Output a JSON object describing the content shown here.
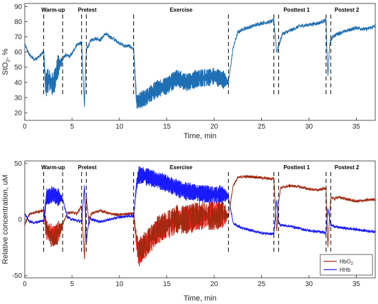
{
  "colors": {
    "sto2_line": "#1f6fb4",
    "hbo2_line": "#a02a10",
    "hbo2_fill": "#ff1a1a",
    "hhb_line": "#1a1aff",
    "phase_marker": "#000000",
    "axis": "#262626"
  },
  "chart_data": [
    {
      "type": "line",
      "title": "",
      "xlabel": "Time, min",
      "ylabel_main": "StO",
      "ylabel_sub": "2",
      "ylabel_tail": ", %",
      "xlim": [
        0,
        37
      ],
      "ylim": [
        15,
        92
      ],
      "xticks": [
        0,
        5,
        10,
        15,
        20,
        25,
        30,
        35
      ],
      "yticks": [
        20,
        30,
        40,
        50,
        60,
        70,
        80,
        90
      ],
      "grid": false,
      "phases": [
        {
          "label": "Warm-up",
          "x": 3.0
        },
        {
          "label": "Pretest",
          "x": 6.6
        },
        {
          "label": "Exercise",
          "x": 16.5
        },
        {
          "label": "Posttest 1",
          "x": 28.7
        },
        {
          "label": "Postest 2",
          "x": 34.0
        }
      ],
      "markers": [
        2.0,
        4.0,
        6.0,
        6.5,
        11.5,
        21.5,
        26.3,
        26.8,
        31.8,
        32.3
      ],
      "series": [
        {
          "name": "StO2",
          "x": [
            0,
            0.5,
            1.0,
            1.5,
            2.0,
            2.2,
            2.5,
            3.0,
            3.5,
            4.0,
            4.3,
            4.7,
            5.0,
            5.5,
            6.0,
            6.3,
            6.5,
            6.8,
            7.0,
            7.5,
            8.0,
            8.5,
            9.0,
            9.5,
            10.0,
            10.5,
            11.0,
            11.5,
            11.8,
            12.2,
            13.0,
            14.0,
            15.0,
            16.0,
            17.0,
            18.0,
            19.0,
            20.0,
            21.0,
            21.5,
            22.0,
            22.5,
            23.0,
            24.0,
            25.0,
            26.0,
            26.3,
            26.6,
            26.8,
            27.2,
            28.0,
            29.0,
            30.0,
            31.0,
            31.8,
            32.0,
            32.2,
            32.5,
            33.0,
            34.0,
            35.0,
            36.0,
            37.0
          ],
          "values": [
            65,
            58,
            55,
            57,
            60,
            38,
            42,
            38,
            50,
            55,
            58,
            57,
            59,
            65,
            66,
            25,
            62,
            65,
            68,
            69,
            68,
            72,
            70,
            68,
            66,
            64,
            64,
            62,
            27,
            28,
            31,
            36,
            38,
            43,
            40,
            42,
            43,
            44,
            42,
            40,
            63,
            73,
            75,
            77,
            79,
            80,
            81,
            60,
            64,
            72,
            74,
            77,
            78,
            79,
            81,
            44,
            66,
            70,
            72,
            74,
            76,
            75,
            77
          ],
          "noise": [
            0,
            0,
            0,
            0,
            0,
            7,
            7,
            7,
            7,
            0,
            0,
            0,
            0,
            0,
            0,
            0,
            0,
            0,
            0,
            0,
            0,
            0,
            0,
            0,
            0,
            0,
            0,
            0,
            3,
            5,
            5,
            5,
            5,
            5,
            5,
            5,
            5,
            5,
            5,
            0,
            0,
            0,
            0,
            0,
            0,
            0,
            0,
            0,
            0,
            0,
            0,
            0,
            0,
            0,
            0,
            0,
            0,
            0,
            0,
            0,
            0,
            0,
            0
          ]
        }
      ]
    },
    {
      "type": "line",
      "title": "",
      "xlabel": "Time, min",
      "ylabel": "Relative concentration, uM",
      "xlim": [
        0,
        37
      ],
      "ylim": [
        -52,
        52
      ],
      "xticks": [
        0,
        5,
        10,
        15,
        20,
        25,
        30,
        35
      ],
      "yticks": [
        -50,
        0,
        50
      ],
      "grid": false,
      "legend_position": "bottom-right",
      "phases": [
        {
          "label": "Warm-up",
          "x": 3.0
        },
        {
          "label": "Pretest",
          "x": 6.6
        },
        {
          "label": "Exercise",
          "x": 16.5
        },
        {
          "label": "Posttest 1",
          "x": 28.7
        },
        {
          "label": "Postest 2",
          "x": 34.0
        }
      ],
      "markers": [
        2.0,
        4.0,
        6.0,
        6.5,
        11.5,
        21.5,
        26.3,
        26.8,
        31.8,
        32.3
      ],
      "series": [
        {
          "name": "HbO",
          "name_sub": "2",
          "x": [
            0,
            0.5,
            1.0,
            1.5,
            2.0,
            2.3,
            3.0,
            3.5,
            4.0,
            4.5,
            5.0,
            5.5,
            6.0,
            6.3,
            6.5,
            6.8,
            7.0,
            8.0,
            9.0,
            10.0,
            11.0,
            11.5,
            11.8,
            12.0,
            13.0,
            14.0,
            15.0,
            16.0,
            17.0,
            18.0,
            19.0,
            20.0,
            21.0,
            21.5,
            22.0,
            22.5,
            23.0,
            24.0,
            25.0,
            26.0,
            26.3,
            26.6,
            26.8,
            27.0,
            28.0,
            29.0,
            30.0,
            31.0,
            31.8,
            32.0,
            32.3,
            32.7,
            33.0,
            34.0,
            35.0,
            36.0,
            37.0
          ],
          "values": [
            -5,
            5,
            6,
            7,
            8,
            -10,
            -15,
            -12,
            -5,
            6,
            6,
            5,
            12,
            -35,
            20,
            -5,
            5,
            8,
            5,
            4,
            5,
            5,
            -20,
            -30,
            -20,
            -10,
            -5,
            0,
            0,
            2,
            3,
            4,
            4,
            3,
            30,
            37,
            38,
            38,
            37,
            36,
            37,
            -10,
            15,
            28,
            30,
            29,
            27,
            26,
            28,
            -25,
            20,
            18,
            20,
            18,
            16,
            17,
            18
          ],
          "noise": [
            0,
            0,
            0,
            0,
            0,
            10,
            10,
            10,
            0,
            0,
            0,
            0,
            0,
            0,
            0,
            0,
            0,
            0,
            0,
            0,
            0,
            0,
            6,
            12,
            12,
            12,
            12,
            12,
            12,
            12,
            12,
            12,
            12,
            0,
            0,
            0,
            0,
            0,
            0,
            0,
            0,
            0,
            0,
            0,
            0,
            0,
            0,
            0,
            0,
            0,
            0,
            0,
            0,
            0,
            0,
            0,
            0
          ]
        },
        {
          "name": "HHb",
          "x": [
            0,
            0.5,
            1.0,
            1.5,
            2.0,
            2.3,
            3.0,
            3.5,
            4.0,
            4.5,
            5.0,
            5.5,
            6.0,
            6.3,
            6.5,
            6.8,
            7.0,
            8.0,
            9.0,
            10.0,
            11.0,
            11.5,
            11.8,
            12.0,
            13.0,
            14.0,
            15.0,
            16.0,
            17.0,
            18.0,
            19.0,
            20.0,
            21.0,
            21.5,
            22.0,
            22.5,
            23.0,
            24.0,
            25.0,
            26.0,
            26.3,
            26.6,
            26.8,
            27.0,
            28.0,
            29.0,
            30.0,
            31.0,
            31.8,
            32.0,
            32.3,
            32.7,
            33.0,
            34.0,
            35.0,
            36.0,
            37.0
          ],
          "values": [
            5,
            -2,
            -3,
            -2,
            -1,
            20,
            22,
            20,
            18,
            2,
            0,
            -1,
            -2,
            30,
            -20,
            2,
            0,
            -2,
            0,
            2,
            3,
            3,
            30,
            40,
            38,
            35,
            32,
            28,
            25,
            24,
            23,
            22,
            22,
            20,
            -3,
            -6,
            -8,
            -10,
            -12,
            -13,
            -13,
            18,
            -3,
            -5,
            -6,
            -8,
            -10,
            -11,
            -12,
            10,
            -5,
            -6,
            -7,
            -8,
            -9,
            -10,
            -11
          ],
          "noise": [
            0,
            0,
            0,
            0,
            0,
            7,
            7,
            7,
            0,
            0,
            0,
            0,
            0,
            0,
            0,
            0,
            0,
            0,
            0,
            0,
            0,
            0,
            4,
            7,
            7,
            7,
            7,
            7,
            7,
            7,
            7,
            7,
            7,
            0,
            0,
            0,
            0,
            0,
            0,
            0,
            0,
            0,
            0,
            0,
            0,
            0,
            0,
            0,
            0,
            0,
            0,
            0,
            0,
            0,
            0,
            0,
            0
          ]
        }
      ]
    }
  ]
}
